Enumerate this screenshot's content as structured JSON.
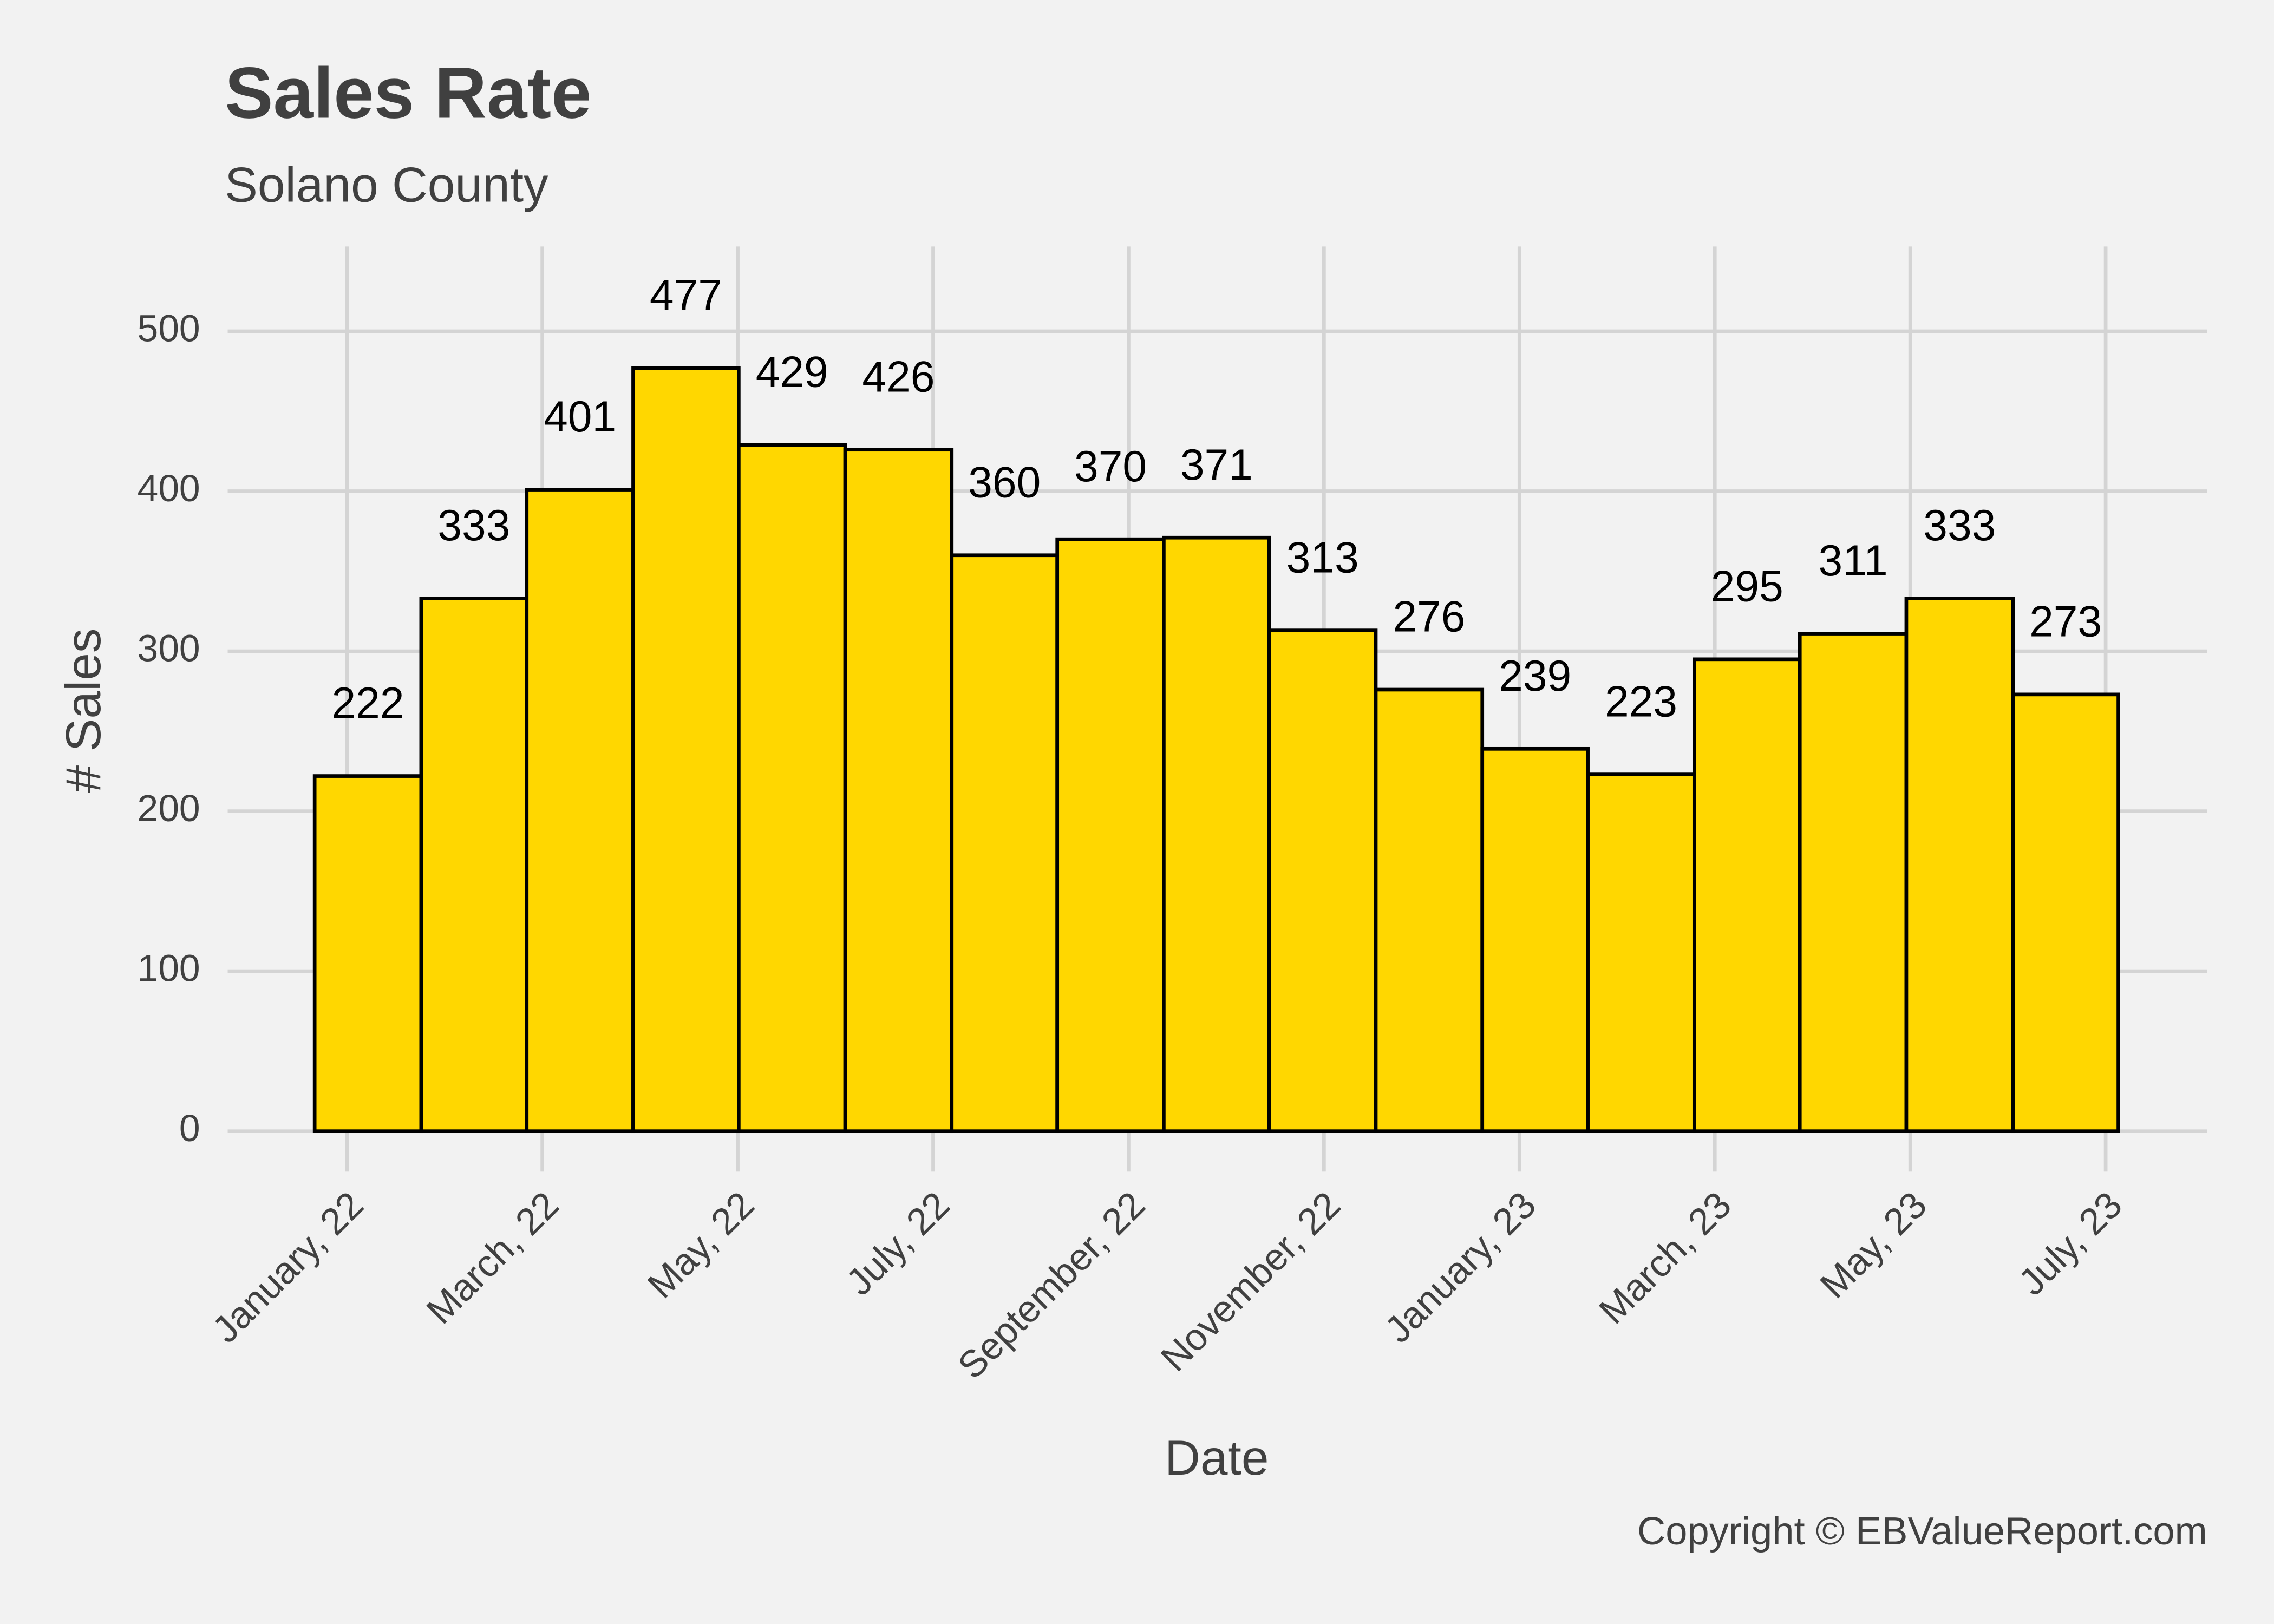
{
  "chart_data": {
    "type": "histogram",
    "title": "Sales Rate",
    "subtitle": "Solano County",
    "x_label": "Date",
    "y_label": "# Sales",
    "caption": "Copyright  © EBValueReport.com",
    "bins": [
      -0.33,
      0.76,
      1.84,
      2.93,
      4.01,
      5.1,
      6.19,
      7.27,
      8.36,
      9.44,
      10.53,
      11.62,
      12.7,
      13.79,
      14.87,
      15.96,
      17.05,
      18.13
    ],
    "values": [
      222,
      333,
      401,
      477,
      429,
      426,
      360,
      370,
      371,
      313,
      276,
      239,
      223,
      295,
      311,
      333,
      273
    ],
    "color": "#FFD700",
    "edge_color": "#000000",
    "xlim": [
      -1.22,
      19.04
    ],
    "xticks": [
      {
        "value": 0,
        "label": "January, 22"
      },
      {
        "value": 2,
        "label": "March, 22"
      },
      {
        "value": 4,
        "label": "May, 22"
      },
      {
        "value": 6,
        "label": "July, 22"
      },
      {
        "value": 8,
        "label": "September, 22"
      },
      {
        "value": 10,
        "label": "November, 22"
      },
      {
        "value": 12,
        "label": "January, 23"
      },
      {
        "value": 14,
        "label": "March, 23"
      },
      {
        "value": 16,
        "label": "May, 23"
      },
      {
        "value": 18,
        "label": "July, 23"
      }
    ],
    "ylim": [
      -18,
      553
    ],
    "yticks": [
      0,
      100,
      200,
      300,
      400,
      500
    ],
    "grid": true
  }
}
